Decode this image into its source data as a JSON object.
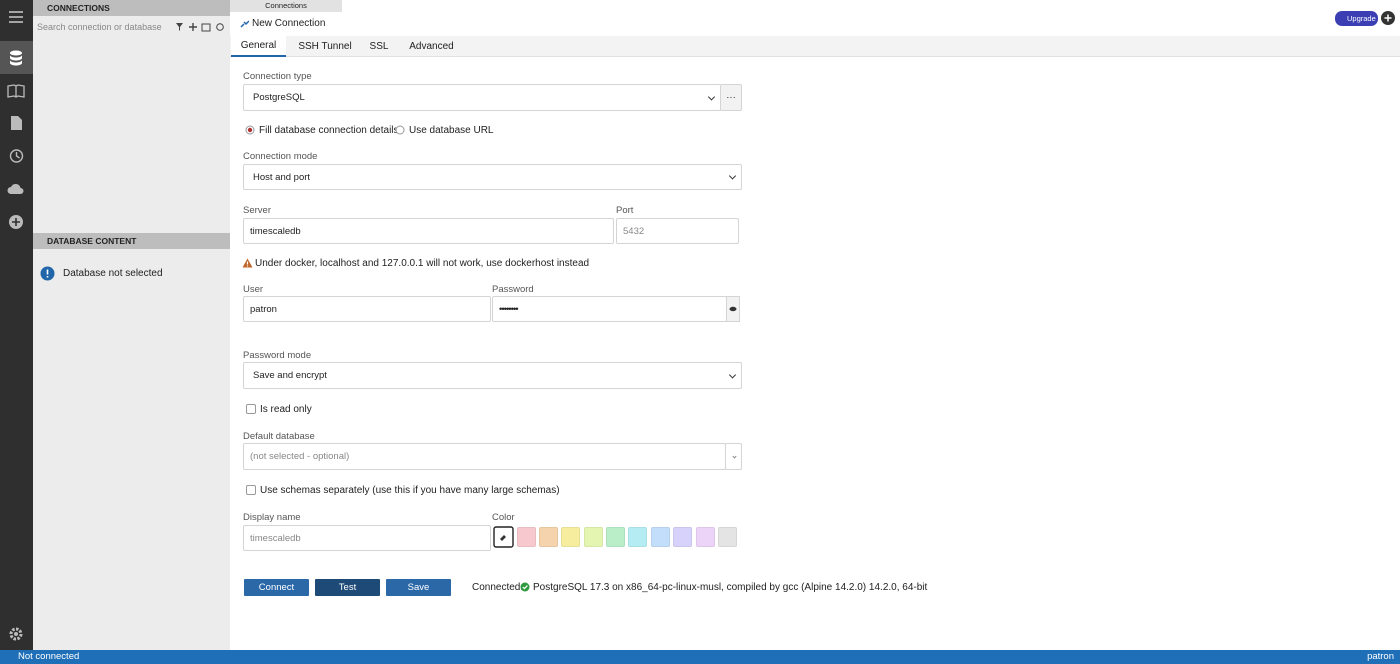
{
  "sidebar": {
    "connections_title": "CONNECTIONS",
    "search_placeholder": "Search connection or database",
    "database_content_title": "DATABASE CONTENT",
    "database_status": "Database not selected"
  },
  "tabs": {
    "connections": "Connections",
    "active": "New Connection"
  },
  "upgrade": "Upgrade",
  "subtabs": [
    "General",
    "SSH Tunnel",
    "SSL",
    "Advanced"
  ],
  "form": {
    "connection_type_label": "Connection type",
    "connection_type": "PostgreSQL",
    "more_button": "···",
    "radio_fill": "Fill database connection details",
    "radio_url": "Use database URL",
    "connection_mode_label": "Connection mode",
    "connection_mode": "Host and port",
    "server_label": "Server",
    "server": "timescaledb",
    "port_label": "Port",
    "port": "5432",
    "warning": "Under docker, localhost and 127.0.0.1 will not work, use dockerhost instead",
    "user_label": "User",
    "user": "patron",
    "password_label": "Password",
    "password": "••••••••",
    "password_mode_label": "Password mode",
    "password_mode": "Save and encrypt",
    "read_only": "Is read only",
    "default_database_label": "Default database",
    "default_database": "(not selected - optional)",
    "schemas": "Use schemas separately (use this if you have many large schemas)",
    "display_name_label": "Display name",
    "display_name": "timescaledb",
    "color_label": "Color"
  },
  "buttons": [
    "Connect",
    "Test",
    "Save"
  ],
  "connection_result": {
    "label": "Connected:",
    "text": "PostgreSQL 17.3 on x86_64-pc-linux-musl, compiled by gcc (Alpine 14.2.0) 14.2.0, 64-bit"
  },
  "status_bar": {
    "connection": "Not connected",
    "user": "patron"
  }
}
